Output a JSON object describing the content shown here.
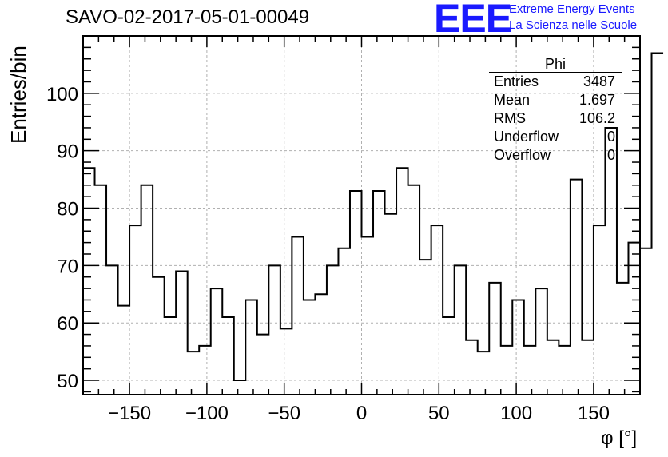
{
  "title": "SAVO-02-2017-05-01-00049",
  "logo": {
    "text": "EEE",
    "line1": "Extreme Energy Events",
    "line2": "La Scienza nelle Scuole"
  },
  "stats": {
    "name": "Phi",
    "rows": [
      {
        "label": "Entries",
        "value": "3487"
      },
      {
        "label": "Mean",
        "value": "1.697"
      },
      {
        "label": "RMS",
        "value": "106.2"
      },
      {
        "label": "Underflow",
        "value": "0"
      },
      {
        "label": "Overflow",
        "value": "0"
      }
    ]
  },
  "colors": {
    "line": "#000000",
    "grid": "#b0b0b0",
    "logo": "#1a1aff"
  },
  "chart_data": {
    "type": "histogram",
    "title": "SAVO-02-2017-05-01-00049",
    "xlabel": "φ [°]",
    "ylabel": "Entries/bin",
    "xlim": [
      -180,
      180
    ],
    "ylim": [
      47.5,
      110
    ],
    "bin_width": 7.5,
    "bin_edges_start": -180,
    "values": [
      87,
      84,
      70,
      63,
      77,
      84,
      68,
      61,
      69,
      55,
      56,
      66,
      61,
      50,
      64,
      58,
      70,
      59,
      75,
      64,
      65,
      70,
      73,
      83,
      75,
      83,
      79,
      87,
      84,
      71,
      77,
      61,
      70,
      57,
      55,
      67,
      56,
      64,
      56,
      66,
      57,
      56,
      85,
      57,
      77,
      94,
      67,
      74,
      73,
      107
    ],
    "xticks": [
      -150,
      -100,
      -50,
      0,
      50,
      100,
      150
    ],
    "xtick_labels": [
      "−150",
      "−100",
      "−50",
      "0",
      "50",
      "100",
      "150"
    ],
    "yticks": [
      50,
      60,
      70,
      80,
      90,
      100
    ],
    "ytick_labels": [
      "50",
      "60",
      "70",
      "80",
      "90",
      "100"
    ],
    "grid": true
  }
}
